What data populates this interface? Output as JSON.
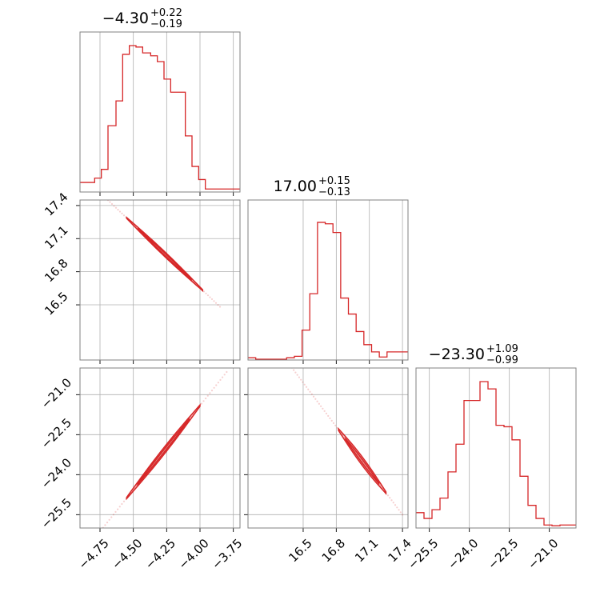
{
  "chart_data": {
    "type": "corner",
    "color": "#d62728",
    "grid": true,
    "parameters": [
      {
        "title_value": "−4.30",
        "title_plus": "+0.22",
        "title_minus": "−0.19",
        "range": [
          -4.9,
          -3.7
        ],
        "ticks": [
          -4.75,
          -4.5,
          -4.25,
          -4.0,
          -3.75
        ],
        "tick_labels": [
          "−4.75",
          "−4.50",
          "−4.25",
          "−4.00",
          "−3.75"
        ],
        "hist_edges": [
          -4.9,
          -4.79,
          -4.74,
          -4.69,
          -4.63,
          -4.58,
          -4.53,
          -4.48,
          -4.43,
          -4.37,
          -4.32,
          -4.27,
          -4.22,
          -4.16,
          -4.11,
          -4.06,
          -4.01,
          -3.96,
          -3.91,
          -3.85,
          -3.7
        ],
        "hist_counts": [
          0.06,
          0.09,
          0.15,
          0.45,
          0.62,
          0.94,
          1.0,
          0.99,
          0.95,
          0.93,
          0.89,
          0.77,
          0.68,
          0.68,
          0.38,
          0.17,
          0.08,
          0.015,
          0.015,
          0.015
        ]
      },
      {
        "title_value": "17.00",
        "title_plus": "+0.15",
        "title_minus": "−0.13",
        "range": [
          16.0,
          17.45
        ],
        "ticks": [
          16.5,
          16.8,
          17.1,
          17.4
        ],
        "tick_labels": [
          "16.5",
          "16.8",
          "17.1",
          "17.4"
        ],
        "hist_edges": [
          16.0,
          16.07,
          16.14,
          16.21,
          16.28,
          16.35,
          16.42,
          16.49,
          16.56,
          16.63,
          16.7,
          16.77,
          16.84,
          16.91,
          16.98,
          17.05,
          17.12,
          17.19,
          17.26,
          17.33,
          17.4,
          17.45
        ],
        "hist_counts": [
          0.01,
          0.0,
          0.0,
          0.0,
          0.0,
          0.01,
          0.02,
          0.2,
          0.45,
          0.94,
          0.93,
          0.87,
          0.42,
          0.31,
          0.19,
          0.1,
          0.05,
          0.015,
          0.05,
          0.05,
          0.05
        ]
      },
      {
        "title_value": "−23.30",
        "title_plus": "+1.09",
        "title_minus": "−0.99",
        "range": [
          -26.0,
          -20.0
        ],
        "ticks": [
          -25.5,
          -24.0,
          -22.5,
          -21.0
        ],
        "tick_labels": [
          "−25.5",
          "−24.0",
          "−22.5",
          "−21.0"
        ],
        "hist_edges": [
          -26.0,
          -25.7,
          -25.4,
          -25.1,
          -24.8,
          -24.5,
          -24.2,
          -23.9,
          -23.6,
          -23.3,
          -23.0,
          -22.7,
          -22.4,
          -22.1,
          -21.8,
          -21.5,
          -21.2,
          -20.9,
          -20.6,
          -20.3,
          -20.0
        ],
        "hist_counts": [
          0.1,
          0.06,
          0.12,
          0.2,
          0.38,
          0.57,
          0.87,
          0.87,
          1.0,
          0.95,
          0.7,
          0.69,
          0.6,
          0.35,
          0.15,
          0.06,
          0.015,
          0.01,
          0.015,
          0.015
        ]
      }
    ],
    "pairs": [
      {
        "x_param": 0,
        "y_param": 1,
        "slope": -1.15,
        "anchor": [
          -4.3,
          17.0
        ],
        "width": 0.022,
        "span": [
          -4.9,
          -3.85
        ],
        "core": [
          -4.55,
          -3.98
        ]
      },
      {
        "x_param": 0,
        "y_param": 2,
        "slope": 6.3,
        "anchor": [
          -4.3,
          -23.3
        ],
        "width": 0.13,
        "span": [
          -4.9,
          -3.8
        ],
        "core": [
          -4.55,
          -4.0
        ]
      },
      {
        "x_param": 1,
        "y_param": 2,
        "slope": -5.5,
        "anchor": [
          17.0,
          -23.3
        ],
        "width": 0.16,
        "span": [
          16.25,
          17.4
        ],
        "core": [
          16.82,
          17.25
        ]
      }
    ]
  }
}
